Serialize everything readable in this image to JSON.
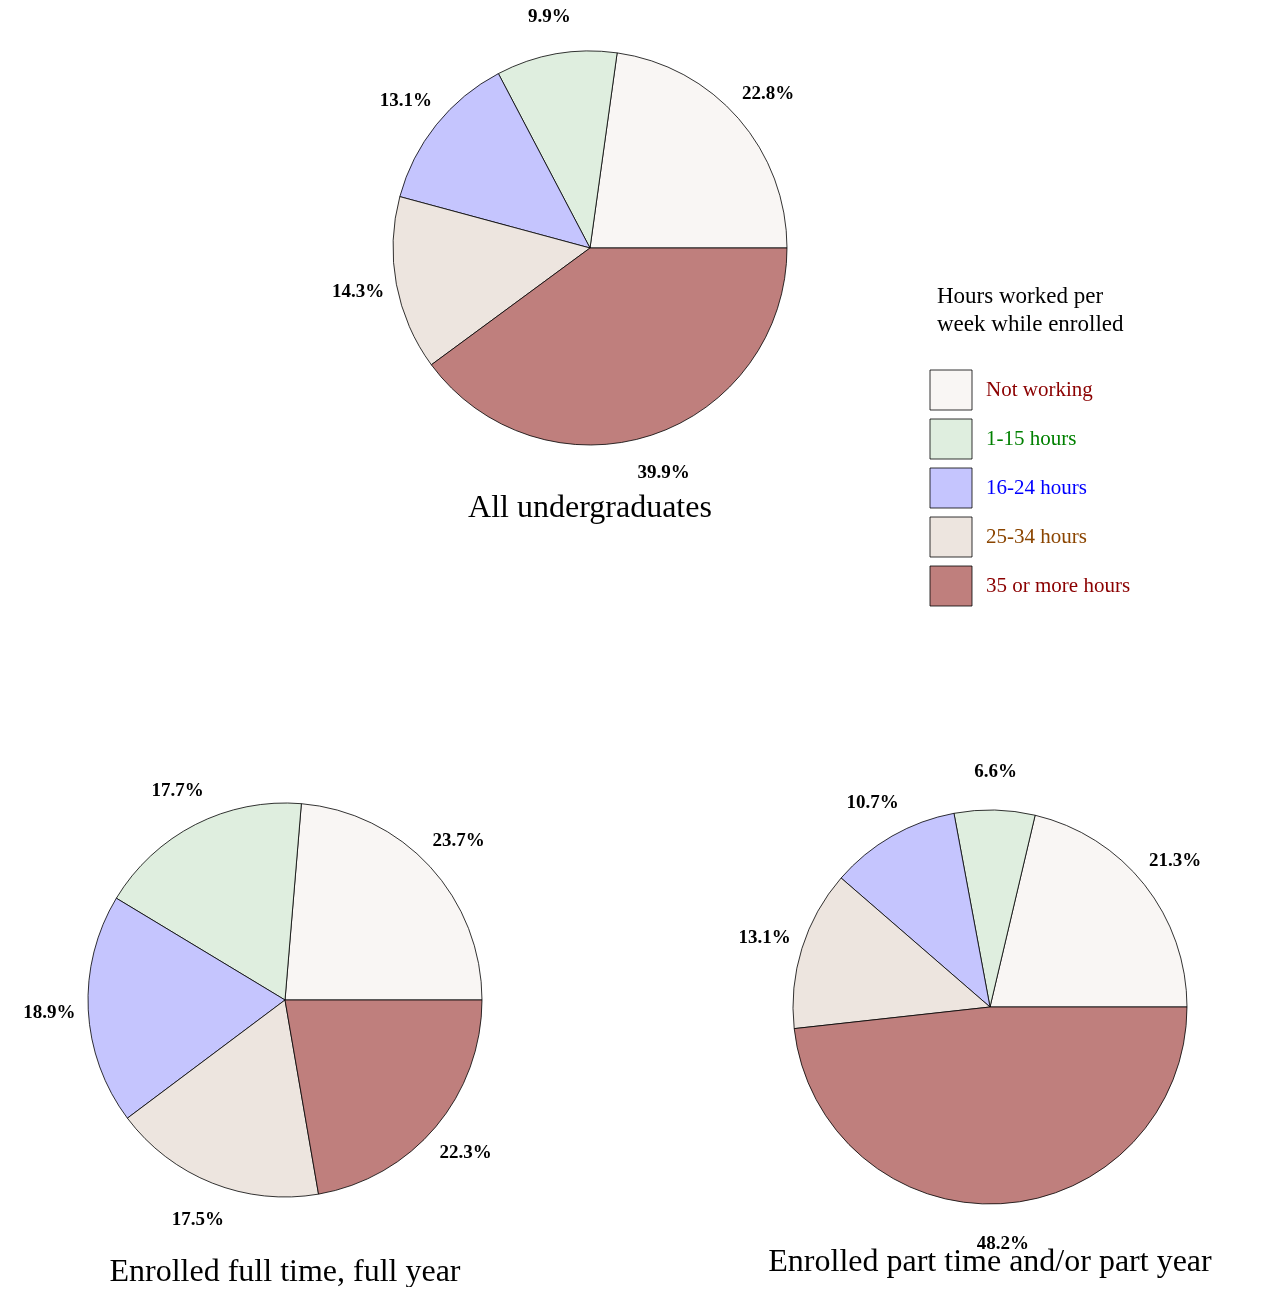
{
  "chart_data": [
    {
      "type": "pie",
      "title": "All undergraduates",
      "legend_title": "Hours worked per week while enrolled",
      "legend": "right",
      "categories": [
        "Not working",
        "1-15 hours",
        "16-24 hours",
        "25-34 hours",
        "35 or more hours"
      ],
      "values": [
        22.8,
        9.9,
        13.1,
        14.3,
        39.9
      ],
      "value_labels": [
        "22.8%",
        "9.9%",
        "13.1%",
        "14.3%",
        "39.9%"
      ],
      "colors": [
        "#f9f6f4",
        "#dfeedf",
        "#c5c5fe",
        "#ede5df",
        "#bf7f7d"
      ]
    },
    {
      "type": "pie",
      "title": "Enrolled full time, full year",
      "values": [
        23.7,
        17.7,
        18.9,
        17.5,
        22.3
      ],
      "value_labels": [
        "23.7%",
        "17.7%",
        "18.9%",
        "17.5%",
        "22.3%"
      ],
      "colors": [
        "#f9f6f4",
        "#dfeedf",
        "#c5c5fe",
        "#ede5df",
        "#bf7f7d"
      ]
    },
    {
      "type": "pie",
      "title": "Enrolled part time and/or part year",
      "values": [
        21.3,
        6.6,
        10.7,
        13.1,
        48.2
      ],
      "value_labels": [
        "21.3%",
        "6.6%",
        "10.7%",
        "13.1%",
        "48.2%"
      ],
      "colors": [
        "#f9f6f4",
        "#dfeedf",
        "#c5c5fe",
        "#ede5df",
        "#bf7f7d"
      ]
    }
  ]
}
